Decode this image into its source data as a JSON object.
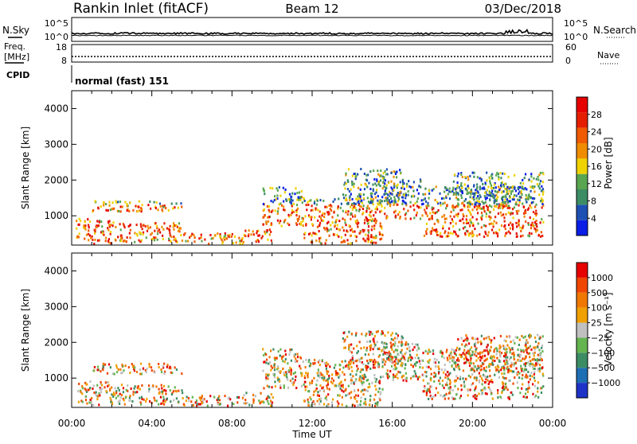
{
  "header": {
    "station": "Rankin Inlet (fitACF)",
    "beam": "Beam 12",
    "date": "03/Dec/2018"
  },
  "summary_panels": {
    "nsky_label": "N.Sky",
    "nsearch_label": "N.Search",
    "noise_ticks": [
      "10^5",
      "10^0"
    ],
    "freq_label_line1": "Freq.",
    "freq_label_line2": "[MHz]",
    "freq_ticks": [
      "18",
      "8"
    ],
    "nave_label": "Nave",
    "nave_ticks": [
      "60",
      "0"
    ],
    "cpid_label": "CPID",
    "cpid_value": "normal (fast) 151"
  },
  "chart_data": [
    {
      "type": "heatmap",
      "title": "",
      "ylabel": "Slant Range [km]",
      "xlabel": "",
      "x_ticks": [
        "00:00",
        "04:00",
        "08:00",
        "12:00",
        "16:00",
        "20:00",
        "00:00"
      ],
      "y_ticks": [
        1000,
        2000,
        3000,
        4000
      ],
      "ylim": [
        180,
        4500
      ],
      "xlim_hours": [
        0,
        24
      ],
      "colorbar": {
        "label": "Power [dB]",
        "ticks": [
          "28",
          "24",
          "20",
          "16",
          "12",
          "8",
          "4"
        ],
        "colors": [
          "#0a1ee6",
          "#1e50b4",
          "#3c8c64",
          "#5aa550",
          "#f0d200",
          "#f08c00",
          "#f05a00",
          "#e61e00",
          "#e60000"
        ]
      }
    },
    {
      "type": "heatmap",
      "title": "",
      "ylabel": "Slant Range [km]",
      "xlabel": "Time UT",
      "x_ticks": [
        "00:00",
        "04:00",
        "08:00",
        "12:00",
        "16:00",
        "20:00",
        "00:00"
      ],
      "y_ticks": [
        1000,
        2000,
        3000,
        4000
      ],
      "ylim": [
        180,
        4500
      ],
      "xlim_hours": [
        0,
        24
      ],
      "colorbar": {
        "label": "Velocity [m s⁻¹]",
        "ticks": [
          "1000",
          "500",
          "100",
          "25",
          "−25",
          "−100",
          "−500",
          "−1000"
        ],
        "colors": [
          "#1e32c8",
          "#1e6eb4",
          "#3c8c64",
          "#64b450",
          "#c0c0c0",
          "#f0a000",
          "#f07800",
          "#f04600",
          "#e60000"
        ]
      }
    }
  ]
}
